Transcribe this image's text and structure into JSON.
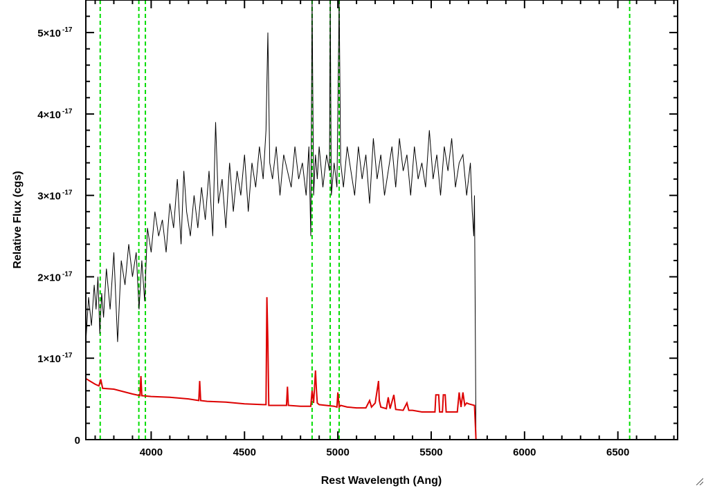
{
  "chart_data": {
    "type": "line",
    "title": "",
    "xlabel": "Rest Wavelength (Ang)",
    "ylabel": "Relative Flux (cgs)",
    "xlim": [
      3650,
      6820
    ],
    "ylim": [
      0,
      5.4e-17
    ],
    "x_ticks": [
      {
        "value": 4000,
        "label": "4000"
      },
      {
        "value": 4500,
        "label": "4500"
      },
      {
        "value": 5000,
        "label": "5000"
      },
      {
        "value": 5500,
        "label": "5500"
      },
      {
        "value": 6000,
        "label": "6000"
      },
      {
        "value": 6500,
        "label": "6500"
      }
    ],
    "y_ticks": [
      {
        "value": 0,
        "mantissa": "0",
        "exponent": ""
      },
      {
        "value": 1e-17,
        "mantissa": "1×10",
        "exponent": "-17"
      },
      {
        "value": 2e-17,
        "mantissa": "2×10",
        "exponent": "-17"
      },
      {
        "value": 3e-17,
        "mantissa": "3×10",
        "exponent": "-17"
      },
      {
        "value": 4e-17,
        "mantissa": "4×10",
        "exponent": "-17"
      },
      {
        "value": 5e-17,
        "mantissa": "5×10",
        "exponent": "-17"
      }
    ],
    "y_unit": 1e-17,
    "series": [
      {
        "color": "#000000",
        "x": [
          3650,
          3665,
          3680,
          3695,
          3705,
          3715,
          3725,
          3735,
          3745,
          3760,
          3780,
          3800,
          3820,
          3840,
          3860,
          3880,
          3900,
          3920,
          3935,
          3950,
          3965,
          3980,
          4000,
          4020,
          4040,
          4060,
          4080,
          4100,
          4120,
          4140,
          4160,
          4175,
          4190,
          4210,
          4230,
          4250,
          4270,
          4290,
          4310,
          4330,
          4345,
          4360,
          4380,
          4400,
          4420,
          4440,
          4460,
          4480,
          4500,
          4520,
          4540,
          4560,
          4580,
          4600,
          4615,
          4625,
          4635,
          4650,
          4670,
          4690,
          4710,
          4730,
          4750,
          4770,
          4790,
          4810,
          4830,
          4845,
          4855,
          4862,
          4870,
          4880,
          4890,
          4900,
          4920,
          4940,
          4955,
          4959,
          4965,
          4980,
          4995,
          5007,
          5015,
          5030,
          5050,
          5070,
          5090,
          5110,
          5130,
          5150,
          5170,
          5190,
          5210,
          5230,
          5250,
          5270,
          5290,
          5310,
          5330,
          5350,
          5370,
          5390,
          5410,
          5430,
          5450,
          5470,
          5490,
          5510,
          5530,
          5550,
          5570,
          5590,
          5610,
          5630,
          5650,
          5670,
          5690,
          5700,
          5710,
          5720,
          5728,
          5732,
          5740,
          5800,
          6000,
          6200,
          6400,
          6600,
          6820
        ],
        "y": [
          1.2,
          1.75,
          1.4,
          1.9,
          1.6,
          2.0,
          1.3,
          1.8,
          1.5,
          2.1,
          1.6,
          2.3,
          1.2,
          2.2,
          1.9,
          2.4,
          2.0,
          2.3,
          1.6,
          2.2,
          1.7,
          2.6,
          2.3,
          2.8,
          2.5,
          2.7,
          2.3,
          2.9,
          2.6,
          3.2,
          2.4,
          3.3,
          2.8,
          2.5,
          3.0,
          2.6,
          3.1,
          2.7,
          3.3,
          2.5,
          3.9,
          2.9,
          3.2,
          2.6,
          3.4,
          2.8,
          3.3,
          3.0,
          3.5,
          2.8,
          3.4,
          3.1,
          3.6,
          3.2,
          3.8,
          5.0,
          3.4,
          3.2,
          3.6,
          3.0,
          3.5,
          3.3,
          3.1,
          3.6,
          3.2,
          3.4,
          3.0,
          3.6,
          2.5,
          6.0,
          3.0,
          3.5,
          3.2,
          3.6,
          3.1,
          3.5,
          3.3,
          6.0,
          3.0,
          3.4,
          3.1,
          6.0,
          3.4,
          3.1,
          3.6,
          3.3,
          3.0,
          3.6,
          3.2,
          3.5,
          2.9,
          3.7,
          3.2,
          3.5,
          3.0,
          3.3,
          3.6,
          3.1,
          3.7,
          3.3,
          3.5,
          3.0,
          3.6,
          3.2,
          3.4,
          3.1,
          3.8,
          3.2,
          3.5,
          3.0,
          3.6,
          3.3,
          3.7,
          3.1,
          3.4,
          3.5,
          3.0,
          3.2,
          3.4,
          2.8,
          2.5,
          3.0,
          0,
          0,
          0,
          0,
          0,
          0,
          0
        ]
      },
      {
        "color": "#dd0000",
        "x": [
          3650,
          3700,
          3720,
          3730,
          3740,
          3800,
          3900,
          3940,
          3945,
          3950,
          4000,
          4100,
          4200,
          4255,
          4260,
          4265,
          4300,
          4400,
          4500,
          4600,
          4615,
          4620,
          4625,
          4630,
          4700,
          4725,
          4730,
          4735,
          4800,
          4855,
          4862,
          4870,
          4880,
          4885,
          4890,
          4900,
          4980,
          4995,
          5000,
          5007,
          5015,
          5050,
          5100,
          5150,
          5170,
          5180,
          5200,
          5218,
          5222,
          5230,
          5260,
          5270,
          5280,
          5300,
          5310,
          5350,
          5370,
          5380,
          5400,
          5450,
          5500,
          5520,
          5525,
          5540,
          5545,
          5560,
          5565,
          5575,
          5580,
          5600,
          5640,
          5650,
          5660,
          5670,
          5680,
          5690,
          5700,
          5732,
          5740,
          5800,
          6000,
          6200,
          6400,
          6600,
          6820
        ],
        "y": [
          0.75,
          0.68,
          0.66,
          0.74,
          0.63,
          0.62,
          0.56,
          0.54,
          0.78,
          0.54,
          0.53,
          0.52,
          0.5,
          0.48,
          0.72,
          0.48,
          0.47,
          0.46,
          0.44,
          0.43,
          0.43,
          1.75,
          1.2,
          0.42,
          0.42,
          0.42,
          0.65,
          0.42,
          0.41,
          0.41,
          0.6,
          0.45,
          0.85,
          0.62,
          0.45,
          0.43,
          0.41,
          0.4,
          0.58,
          0.4,
          0.42,
          0.4,
          0.39,
          0.39,
          0.48,
          0.4,
          0.45,
          0.72,
          0.48,
          0.4,
          0.38,
          0.52,
          0.38,
          0.55,
          0.37,
          0.36,
          0.45,
          0.36,
          0.36,
          0.34,
          0.34,
          0.34,
          0.55,
          0.55,
          0.34,
          0.34,
          0.55,
          0.55,
          0.34,
          0.34,
          0.34,
          0.58,
          0.4,
          0.58,
          0.42,
          0.45,
          0.44,
          0.42,
          0,
          0,
          0,
          0,
          0,
          0,
          0
        ]
      }
    ],
    "vertical_lines": {
      "color": "#00dd00",
      "style": "dashed",
      "x": [
        3727,
        3934,
        3969,
        4862,
        4959,
        5007,
        6563
      ]
    }
  }
}
